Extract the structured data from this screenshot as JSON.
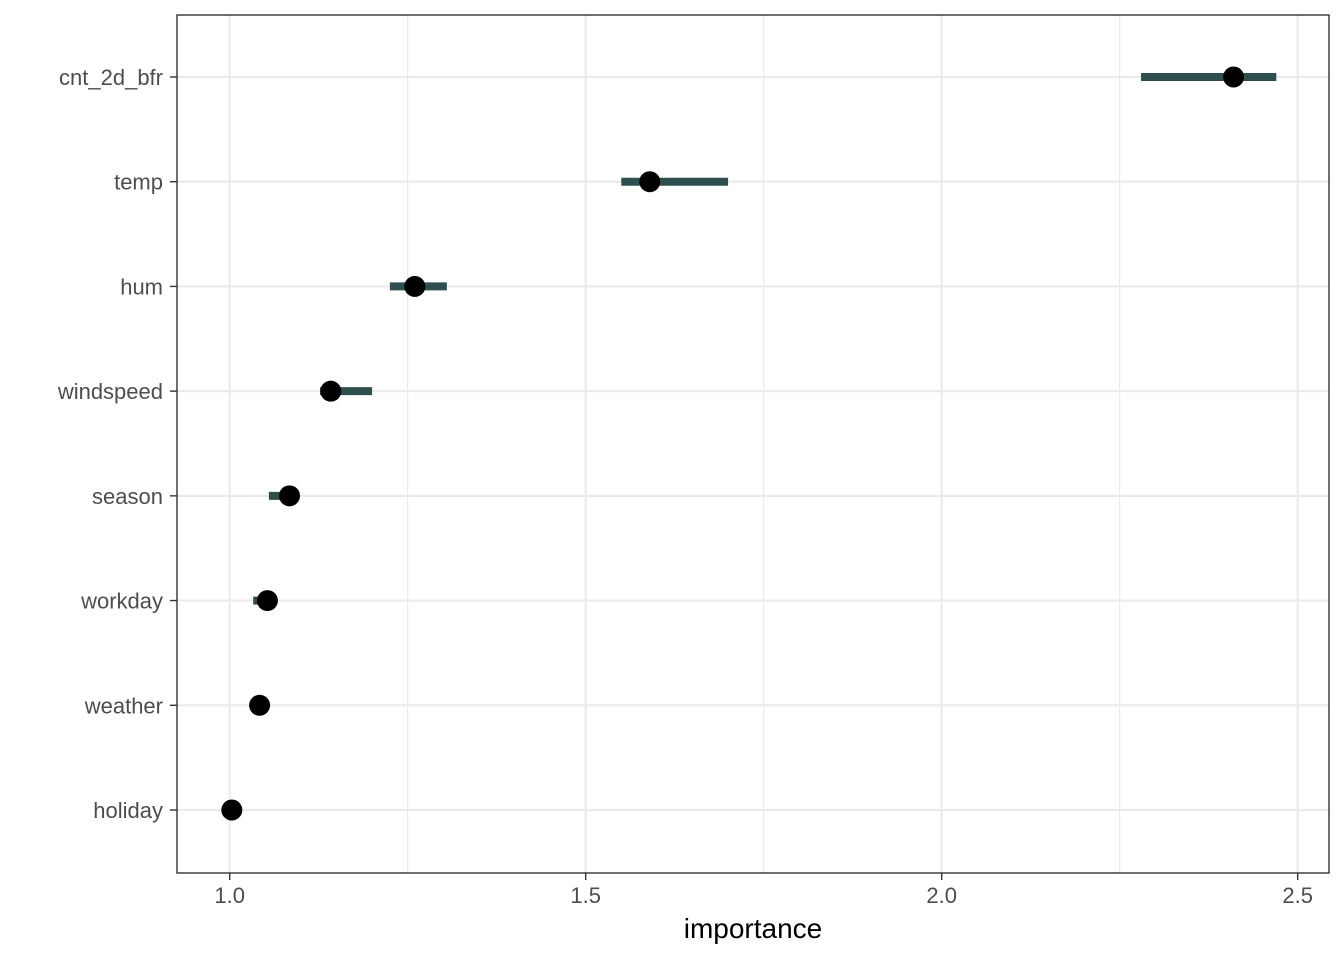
{
  "chart_data": {
    "type": "dot-interval",
    "xlabel": "importance",
    "ylabel": "",
    "xlim": [
      0.926,
      2.544
    ],
    "x_ticks": [
      1.0,
      1.5,
      2.0,
      2.5
    ],
    "x_tick_labels": [
      "1.0",
      "1.5",
      "2.0",
      "2.5"
    ],
    "grid": true,
    "features": [
      "cnt_2d_bfr",
      "temp",
      "hum",
      "windspeed",
      "season",
      "workday",
      "weather",
      "holiday"
    ],
    "importance": [
      2.41,
      1.59,
      1.26,
      1.142,
      1.084,
      1.053,
      1.042,
      1.003
    ],
    "interval_low": [
      2.28,
      1.55,
      1.225,
      1.127,
      1.055,
      1.033,
      1.036,
      1.0
    ],
    "interval_high": [
      2.47,
      1.7,
      1.305,
      1.2,
      1.098,
      1.057,
      1.051,
      1.008
    ],
    "colors": {
      "interval": "#2f4f4f",
      "point": "#000000",
      "grid": "#ebebeb",
      "border": "#333333"
    }
  }
}
